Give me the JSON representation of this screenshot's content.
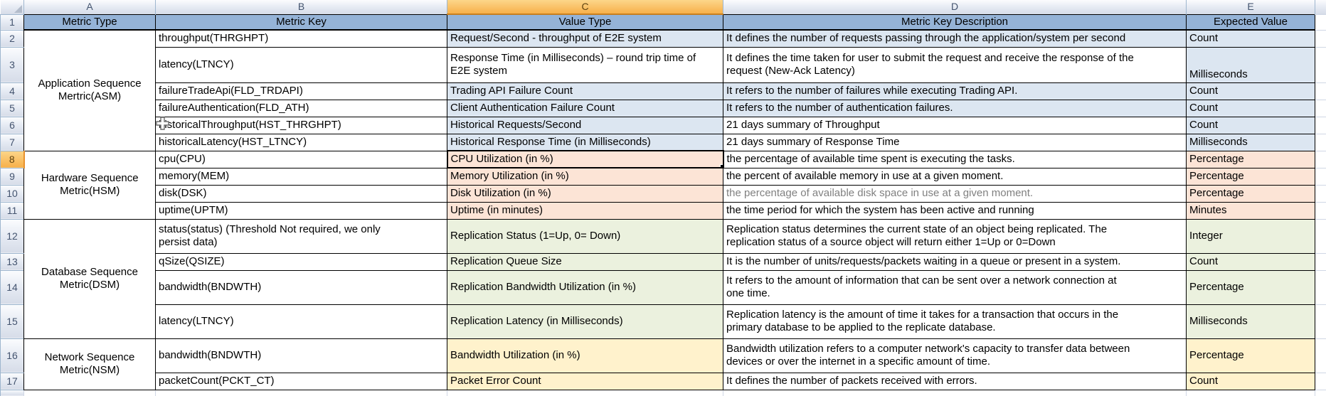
{
  "sheet": {
    "column_letters": [
      "A",
      "B",
      "C",
      "D",
      "E"
    ],
    "row_numbers": [
      "1",
      "2",
      "3",
      "4",
      "5",
      "6",
      "7",
      "8",
      "9",
      "10",
      "11",
      "12",
      "13",
      "14",
      "15",
      "16",
      "17"
    ],
    "selection": {
      "active_cell": "C8",
      "active_column": "C",
      "active_row": "8"
    }
  },
  "table_headers": [
    "Metric Type",
    "Metric Key",
    "Value Type",
    "Metric Key Description",
    "Expected Value"
  ],
  "groups": [
    {
      "label": "Application Sequence Mertric(ASM)"
    },
    {
      "label": "Hardware Sequence Metric(HSM)"
    },
    {
      "label": "Database Sequence Metric(DSM)"
    },
    {
      "label": "Network Sequence Metric(NSM)"
    }
  ],
  "rows": [
    {
      "row": "2",
      "key": "throughput(THRGHPT)",
      "value_type": "Request/Second - throughput of E2E system",
      "description": "It defines the number of requests passing through the application/system per second",
      "expected": "Count"
    },
    {
      "row": "3",
      "key": "latency(LTNCY)",
      "value_type": "Response Time (in Milliseconds) – round trip time of\nE2E system",
      "description": "It defines the time taken for user to submit the request and receive the response of the\nrequest (New-Ack Latency)",
      "expected": "Milliseconds"
    },
    {
      "row": "4",
      "key": "failureTradeApi(FLD_TRDAPI)",
      "value_type": "Trading API Failure Count",
      "description": "It refers to the number of failures while executing Trading API.",
      "expected": "Count"
    },
    {
      "row": "5",
      "key": "failureAuthentication(FLD_ATH)",
      "value_type": "Client Authentication Failure Count",
      "description": "It refers to the number of authentication failures.",
      "expected": "Count"
    },
    {
      "row": "6",
      "key": "historicalThroughput(HST_THRGHPT)",
      "value_type": "Historical Requests/Second",
      "description": "21 days summary of Throughput",
      "expected": "Count"
    },
    {
      "row": "7",
      "key": "historicalLatency(HST_LTNCY)",
      "value_type": "Historical Response Time (in Milliseconds)",
      "description": "21 days summary of Response Time",
      "expected": "Milliseconds"
    },
    {
      "row": "8",
      "key": "cpu(CPU)",
      "value_type": "CPU Utilization (in %)",
      "description": "the percentage of available time spent is executing the tasks.",
      "expected": "Percentage"
    },
    {
      "row": "9",
      "key": "memory(MEM)",
      "value_type": "Memory Utilization (in %)",
      "description": "the percent of available memory in use at a given moment.",
      "expected": "Percentage"
    },
    {
      "row": "10",
      "key": "disk(DSK)",
      "value_type": "Disk Utilization (in %)",
      "description": "the percentage of available disk space in use at a given moment.",
      "expected": "Percentage"
    },
    {
      "row": "11",
      "key": "uptime(UPTM)",
      "value_type": "Uptime (in minutes)",
      "description": "the time period for which the system has been active and running",
      "expected": "Minutes"
    },
    {
      "row": "12",
      "key": "status(status) (Threshold Not required, we only\npersist data)",
      "value_type": "Replication Status (1=Up, 0= Down)",
      "description": "Replication status determines the current state of an object being replicated. The\nreplication status of a source object will return either 1=Up or 0=Down",
      "expected": "Integer"
    },
    {
      "row": "13",
      "key": "qSize(QSIZE)",
      "value_type": "Replication Queue Size",
      "description": "It is the number of units/requests/packets waiting in a queue or present in a system.",
      "expected": "Count"
    },
    {
      "row": "14",
      "key": "bandwidth(BNDWTH)",
      "value_type": "Replication Bandwidth Utilization (in %)",
      "description": "It refers to the amount of information that can be sent over a network connection at\none time.",
      "expected": "Percentage"
    },
    {
      "row": "15",
      "key": "latency(LTNCY)",
      "value_type": "Replication Latency (in Milliseconds)",
      "description": "Replication latency is the amount of time it takes for a transaction that occurs in the\nprimary database to be applied to the replicate database.",
      "expected": "Milliseconds"
    },
    {
      "row": "16",
      "key": "bandwidth(BNDWTH)",
      "value_type": "Bandwidth Utilization (in %)",
      "description": "Bandwidth utilization refers to a computer network's capacity to transfer data between\ndevices or over the internet in a specific amount of time.",
      "expected": "Percentage"
    },
    {
      "row": "17",
      "key": "packetCount(PCKT_CT)",
      "value_type": "Packet Error Count",
      "description": "It defines the number of packets received with errors.",
      "expected": "Count"
    }
  ],
  "colors": {
    "table_header_fill": "#95B3D7",
    "asm_fill": "#DCE6F1",
    "hsm_fill": "#FCE4D6",
    "dsm_fill": "#EBF1DE",
    "nsm_fill": "#FFF2CC",
    "selected_header_fill": "#F7B04A",
    "grid_border": "#000000",
    "empty_gridline": "#D0D7E5"
  }
}
